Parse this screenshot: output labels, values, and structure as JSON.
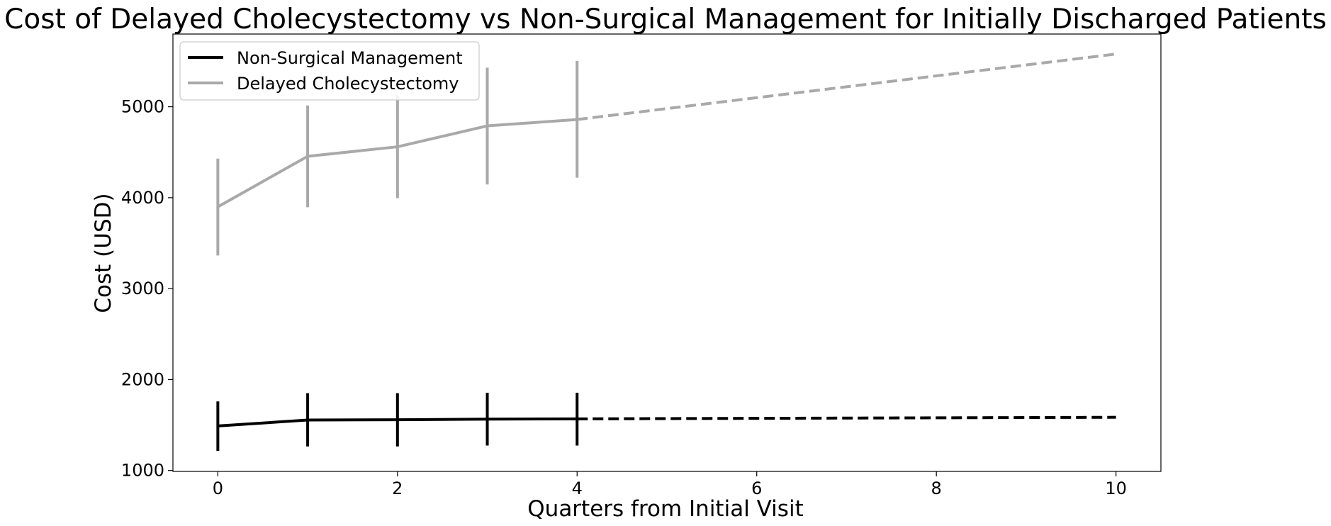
{
  "chart_data": {
    "type": "line",
    "title": "Cost of Delayed Cholecystectomy vs Non-Surgical Management for Initially Discharged Patients",
    "xlabel": "Quarters from Initial Visit",
    "ylabel": "Cost (USD)",
    "xlim": [
      -0.5,
      10.5
    ],
    "ylim": [
      990,
      5800
    ],
    "xticks": [
      0,
      2,
      4,
      6,
      8,
      10
    ],
    "yticks": [
      1000,
      2000,
      3000,
      4000,
      5000
    ],
    "grid": false,
    "legend_position": "top-left",
    "series": [
      {
        "name": "Non-Surgical Management",
        "color": "#000000",
        "observed": {
          "x": [
            0,
            1,
            2,
            3,
            4
          ],
          "y": [
            1490,
            1555,
            1558,
            1565,
            1568
          ],
          "error_low": [
            1215,
            1265,
            1265,
            1275,
            1275
          ],
          "error_high": [
            1760,
            1850,
            1850,
            1855,
            1855
          ]
        },
        "projected": {
          "x": [
            4,
            10
          ],
          "y": [
            1568,
            1585
          ]
        }
      },
      {
        "name": "Delayed Cholecystectomy",
        "color": "#a9a9a9",
        "observed": {
          "x": [
            0,
            1,
            2,
            3,
            4
          ],
          "y": [
            3900,
            4455,
            4560,
            4790,
            4860
          ],
          "error_low": [
            3365,
            3895,
            3995,
            4145,
            4220
          ],
          "error_high": [
            4430,
            5015,
            5125,
            5430,
            5505
          ]
        },
        "projected": {
          "x": [
            4,
            10
          ],
          "y": [
            4860,
            5580
          ]
        }
      }
    ]
  }
}
